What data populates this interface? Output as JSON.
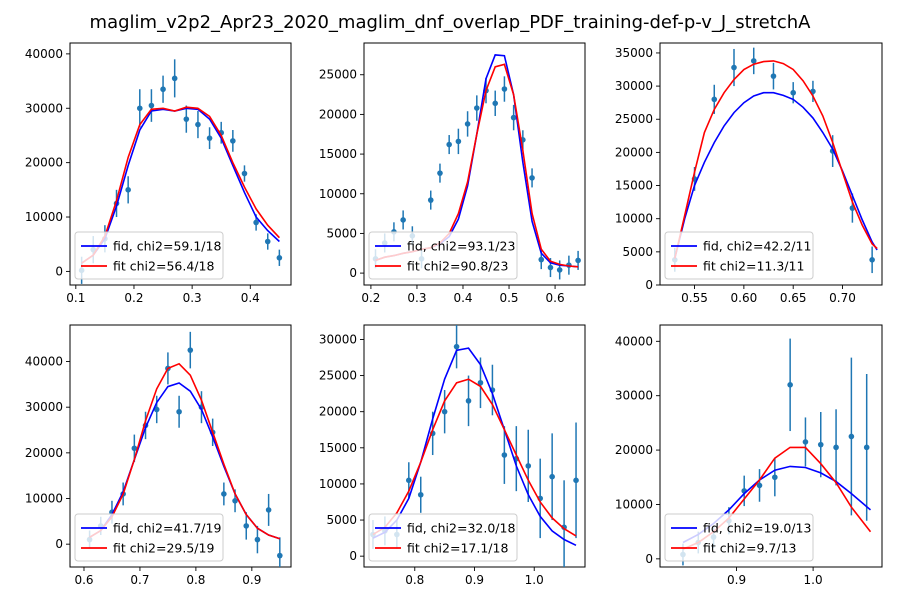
{
  "title": "maglim_v2p2_Apr23_2020_maglim_dnf_overlap_PDF_training-def-p-v_J_stretchA",
  "colors": {
    "fid": "#0000ff",
    "fit": "#ff0000",
    "points": "#1f77b4"
  },
  "chart_data": [
    {
      "type": "line",
      "xlim": [
        0.09,
        0.47
      ],
      "ylim": [
        -2500,
        42000
      ],
      "xticks": [
        "0.1",
        "0.2",
        "0.3",
        "0.4"
      ],
      "xtick_values": [
        0.1,
        0.2,
        0.3,
        0.4
      ],
      "yticks": [
        "0",
        "10000",
        "20000",
        "30000",
        "40000"
      ],
      "ytick_values": [
        0,
        10000,
        20000,
        30000,
        40000
      ],
      "legend": [
        "fid, chi2=59.1/18",
        "fit chi2=56.4/18"
      ],
      "legend_position": "lower-left",
      "points": {
        "x": [
          0.11,
          0.13,
          0.15,
          0.17,
          0.19,
          0.21,
          0.23,
          0.25,
          0.27,
          0.29,
          0.31,
          0.33,
          0.35,
          0.37,
          0.39,
          0.41,
          0.43,
          0.45
        ],
        "y": [
          200,
          4000,
          6000,
          12500,
          15000,
          30000,
          30500,
          33500,
          35500,
          28000,
          27000,
          24500,
          25500,
          24000,
          18000,
          9000,
          5500,
          2500
        ],
        "err": [
          2500,
          2500,
          2500,
          2500,
          2500,
          3500,
          3000,
          2500,
          3500,
          2500,
          2500,
          2000,
          2000,
          2000,
          1500,
          1500,
          1500,
          1500
        ]
      },
      "series": [
        {
          "label": "fid",
          "x": [
            0.11,
            0.13,
            0.15,
            0.17,
            0.19,
            0.21,
            0.23,
            0.25,
            0.27,
            0.29,
            0.31,
            0.33,
            0.35,
            0.37,
            0.39,
            0.41,
            0.43,
            0.45
          ],
          "y": [
            1500,
            3000,
            6000,
            12000,
            19500,
            26000,
            29500,
            29800,
            29500,
            30000,
            29800,
            28000,
            24500,
            19500,
            14500,
            10000,
            7500,
            5500
          ]
        },
        {
          "label": "fit",
          "x": [
            0.11,
            0.13,
            0.15,
            0.17,
            0.19,
            0.21,
            0.23,
            0.25,
            0.27,
            0.29,
            0.31,
            0.33,
            0.35,
            0.37,
            0.39,
            0.41,
            0.43,
            0.45
          ],
          "y": [
            1500,
            3000,
            6500,
            13000,
            21000,
            27000,
            29800,
            30000,
            29500,
            30200,
            30000,
            28500,
            25000,
            20000,
            15500,
            11500,
            8500,
            6200
          ]
        }
      ]
    },
    {
      "type": "line",
      "xlim": [
        0.185,
        0.665
      ],
      "ylim": [
        -1500,
        29000
      ],
      "xticks": [
        "0.2",
        "0.3",
        "0.4",
        "0.5",
        "0.6"
      ],
      "xtick_values": [
        0.2,
        0.3,
        0.4,
        0.5,
        0.6
      ],
      "yticks": [
        "0",
        "5000",
        "10000",
        "15000",
        "20000",
        "25000"
      ],
      "ytick_values": [
        0,
        5000,
        10000,
        15000,
        20000,
        25000
      ],
      "legend": [
        "fid, chi2=93.1/23",
        "fit chi2=90.8/23"
      ],
      "legend_position": "lower-left",
      "points": {
        "x": [
          0.21,
          0.23,
          0.25,
          0.27,
          0.29,
          0.31,
          0.33,
          0.35,
          0.37,
          0.39,
          0.41,
          0.43,
          0.45,
          0.47,
          0.49,
          0.51,
          0.53,
          0.55,
          0.57,
          0.59,
          0.61,
          0.63,
          0.65
        ],
        "y": [
          1800,
          3800,
          5200,
          6700,
          4700,
          1800,
          9200,
          12600,
          16200,
          16600,
          18800,
          20800,
          23000,
          21400,
          23200,
          19600,
          16800,
          12000,
          1700,
          700,
          400,
          1000,
          1600
        ],
        "err": [
          1200,
          1200,
          1200,
          1200,
          1200,
          1200,
          1200,
          1200,
          1200,
          1600,
          1600,
          1600,
          1600,
          1600,
          1600,
          1600,
          1200,
          1200,
          1200,
          1200,
          1200,
          1200,
          1200
        ]
      },
      "series": [
        {
          "label": "fid",
          "x": [
            0.21,
            0.23,
            0.25,
            0.27,
            0.29,
            0.31,
            0.33,
            0.35,
            0.37,
            0.39,
            0.41,
            0.43,
            0.45,
            0.47,
            0.49,
            0.51,
            0.53,
            0.55,
            0.57,
            0.59,
            0.61,
            0.63,
            0.65
          ],
          "y": [
            1600,
            2000,
            2200,
            2500,
            2700,
            3000,
            3200,
            3700,
            4600,
            6800,
            11000,
            17500,
            24500,
            27500,
            27400,
            22500,
            14000,
            6500,
            2500,
            1300,
            1000,
            900,
            800
          ]
        },
        {
          "label": "fit",
          "x": [
            0.21,
            0.23,
            0.25,
            0.27,
            0.29,
            0.31,
            0.33,
            0.35,
            0.37,
            0.39,
            0.41,
            0.43,
            0.45,
            0.47,
            0.49,
            0.51,
            0.53,
            0.55,
            0.57,
            0.59,
            0.61,
            0.63,
            0.65
          ],
          "y": [
            1600,
            2000,
            2200,
            2500,
            2700,
            3000,
            3200,
            3800,
            5000,
            7500,
            11500,
            17500,
            23000,
            26000,
            26300,
            22500,
            15500,
            7500,
            3000,
            1500,
            1100,
            900,
            800
          ]
        }
      ]
    },
    {
      "type": "line",
      "xlim": [
        0.515,
        0.74
      ],
      "ylim": [
        0,
        36500
      ],
      "xticks": [
        "0.55",
        "0.60",
        "0.65",
        "0.70"
      ],
      "xtick_values": [
        0.55,
        0.6,
        0.65,
        0.7
      ],
      "yticks": [
        "0",
        "5000",
        "10000",
        "15000",
        "20000",
        "25000",
        "30000",
        "35000"
      ],
      "ytick_values": [
        0,
        5000,
        10000,
        15000,
        20000,
        25000,
        30000,
        35000
      ],
      "legend": [
        "fid, chi2=42.2/11",
        "fit chi2=11.3/11"
      ],
      "legend_position": "lower-left",
      "points": {
        "x": [
          0.53,
          0.55,
          0.57,
          0.59,
          0.61,
          0.63,
          0.65,
          0.67,
          0.69,
          0.71,
          0.73
        ],
        "y": [
          3800,
          16000,
          28000,
          32800,
          33800,
          31500,
          29000,
          29200,
          20200,
          11600,
          3800
        ],
        "err": [
          1800,
          1800,
          2200,
          2800,
          2000,
          2000,
          1600,
          1600,
          2400,
          2200,
          2000
        ]
      },
      "series": [
        {
          "label": "fid",
          "x": [
            0.53,
            0.54,
            0.55,
            0.56,
            0.57,
            0.58,
            0.59,
            0.6,
            0.61,
            0.62,
            0.63,
            0.64,
            0.65,
            0.66,
            0.67,
            0.68,
            0.69,
            0.7,
            0.71,
            0.72,
            0.73,
            0.735
          ],
          "y": [
            4000,
            10000,
            15000,
            18500,
            21500,
            24000,
            26000,
            27500,
            28500,
            29000,
            29000,
            28600,
            28000,
            26800,
            25200,
            23000,
            20500,
            17200,
            13500,
            9800,
            6500,
            5300
          ]
        },
        {
          "label": "fit",
          "x": [
            0.53,
            0.54,
            0.55,
            0.56,
            0.57,
            0.58,
            0.59,
            0.6,
            0.61,
            0.62,
            0.63,
            0.64,
            0.65,
            0.66,
            0.67,
            0.68,
            0.69,
            0.7,
            0.71,
            0.72,
            0.73,
            0.735
          ],
          "y": [
            4000,
            10500,
            17000,
            23000,
            26500,
            29000,
            31000,
            32500,
            33300,
            33700,
            33800,
            33400,
            32500,
            30800,
            28500,
            25500,
            21500,
            17000,
            12500,
            9000,
            6200,
            5500
          ]
        }
      ]
    },
    {
      "type": "line",
      "xlim": [
        0.575,
        0.97
      ],
      "ylim": [
        -5000,
        48000
      ],
      "xticks": [
        "0.6",
        "0.7",
        "0.8",
        "0.9"
      ],
      "xtick_values": [
        0.6,
        0.7,
        0.8,
        0.9
      ],
      "yticks": [
        "0",
        "10000",
        "20000",
        "30000",
        "40000"
      ],
      "ytick_values": [
        0,
        10000,
        20000,
        30000,
        40000
      ],
      "legend": [
        "fid, chi2=41.7/19",
        "fit chi2=29.5/19"
      ],
      "legend_position": "lower-left",
      "points": {
        "x": [
          0.61,
          0.63,
          0.65,
          0.67,
          0.69,
          0.71,
          0.73,
          0.75,
          0.77,
          0.79,
          0.81,
          0.83,
          0.85,
          0.87,
          0.89,
          0.91,
          0.93,
          0.95
        ],
        "y": [
          1000,
          4000,
          7000,
          11000,
          21000,
          26000,
          29500,
          38500,
          29000,
          42500,
          30000,
          24500,
          11000,
          9500,
          4000,
          1000,
          7500,
          -2500
        ],
        "err": [
          2000,
          2000,
          2500,
          2500,
          3000,
          3000,
          3000,
          3500,
          3500,
          4000,
          3500,
          3000,
          2500,
          2500,
          3000,
          3000,
          3500,
          4000
        ]
      },
      "series": [
        {
          "label": "fid",
          "x": [
            0.61,
            0.63,
            0.65,
            0.67,
            0.69,
            0.71,
            0.73,
            0.75,
            0.77,
            0.79,
            0.81,
            0.83,
            0.85,
            0.87,
            0.89,
            0.91,
            0.93,
            0.95
          ],
          "y": [
            1500,
            3000,
            6500,
            11500,
            18500,
            25500,
            31000,
            34500,
            35300,
            33500,
            29500,
            23500,
            17000,
            11000,
            6500,
            3500,
            2000,
            1200
          ]
        },
        {
          "label": "fit",
          "x": [
            0.61,
            0.63,
            0.65,
            0.67,
            0.69,
            0.71,
            0.73,
            0.75,
            0.77,
            0.79,
            0.81,
            0.83,
            0.85,
            0.87,
            0.89,
            0.91,
            0.93,
            0.95
          ],
          "y": [
            1500,
            3000,
            6000,
            11000,
            18500,
            27000,
            34000,
            38500,
            39500,
            37000,
            31500,
            24500,
            17500,
            11000,
            6500,
            3500,
            2000,
            1200
          ]
        }
      ]
    },
    {
      "type": "line",
      "xlim": [
        0.715,
        1.085
      ],
      "ylim": [
        -1500,
        32000
      ],
      "xticks": [
        "0.8",
        "0.9",
        "1.0"
      ],
      "xtick_values": [
        0.8,
        0.9,
        1.0
      ],
      "yticks": [
        "0",
        "5000",
        "10000",
        "15000",
        "20000",
        "25000",
        "30000"
      ],
      "ytick_values": [
        0,
        5000,
        10000,
        15000,
        20000,
        25000,
        30000
      ],
      "legend": [
        "fid, chi2=32.0/18",
        "fit chi2=17.1/18"
      ],
      "legend_position": "lower-left",
      "points": {
        "x": [
          0.73,
          0.75,
          0.77,
          0.79,
          0.81,
          0.83,
          0.85,
          0.87,
          0.89,
          0.91,
          0.93,
          0.95,
          0.97,
          0.99,
          1.01,
          1.03,
          1.05,
          1.07
        ],
        "y": [
          3000,
          3500,
          3000,
          10500,
          8500,
          17000,
          20000,
          29000,
          21500,
          24000,
          23000,
          14000,
          13500,
          12500,
          8000,
          11000,
          4000,
          10500
        ],
        "err": [
          2000,
          2000,
          2000,
          2500,
          2500,
          3000,
          3000,
          3000,
          3500,
          3500,
          3500,
          4000,
          4500,
          5000,
          5500,
          6000,
          6500,
          8000
        ]
      },
      "series": [
        {
          "label": "fid",
          "x": [
            0.73,
            0.75,
            0.77,
            0.79,
            0.81,
            0.83,
            0.85,
            0.87,
            0.89,
            0.91,
            0.93,
            0.95,
            0.97,
            0.99,
            1.01,
            1.03,
            1.05,
            1.07
          ],
          "y": [
            2500,
            3300,
            5000,
            8000,
            13000,
            19000,
            24500,
            28500,
            28800,
            26500,
            22500,
            17500,
            12500,
            8500,
            5500,
            3500,
            2300,
            1500
          ]
        },
        {
          "label": "fit",
          "x": [
            0.73,
            0.75,
            0.77,
            0.79,
            0.81,
            0.83,
            0.85,
            0.87,
            0.89,
            0.91,
            0.93,
            0.95,
            0.97,
            0.99,
            1.01,
            1.03,
            1.05,
            1.07
          ],
          "y": [
            3000,
            4000,
            6000,
            9000,
            13000,
            17500,
            21500,
            24000,
            24500,
            23500,
            21000,
            17500,
            14000,
            10500,
            7500,
            5300,
            3800,
            2800
          ]
        }
      ]
    },
    {
      "type": "line",
      "xlim": [
        0.8,
        1.09
      ],
      "ylim": [
        -1500,
        43000
      ],
      "xticks": [
        "0.9",
        "1.0"
      ],
      "xtick_values": [
        0.9,
        1.0
      ],
      "yticks": [
        "0",
        "10000",
        "20000",
        "30000",
        "40000"
      ],
      "ytick_values": [
        0,
        10000,
        20000,
        30000,
        40000
      ],
      "legend": [
        "fid, chi2=19.0/13",
        "fit chi2=9.7/13"
      ],
      "legend_position": "lower-left",
      "points": {
        "x": [
          0.83,
          0.85,
          0.87,
          0.89,
          0.91,
          0.93,
          0.95,
          0.97,
          0.99,
          1.01,
          1.03,
          1.05,
          1.07
        ],
        "y": [
          800,
          3000,
          4000,
          7000,
          12500,
          13500,
          15000,
          32000,
          21500,
          21000,
          20500,
          22500,
          20500
        ],
        "err": [
          2000,
          2000,
          2000,
          2500,
          2800,
          3000,
          3500,
          8500,
          4500,
          6000,
          7000,
          14500,
          13500
        ]
      },
      "series": [
        {
          "label": "fid",
          "x": [
            0.83,
            0.85,
            0.87,
            0.89,
            0.91,
            0.93,
            0.95,
            0.97,
            0.99,
            1.01,
            1.03,
            1.05,
            1.075
          ],
          "y": [
            3000,
            4500,
            6500,
            9000,
            12000,
            14500,
            16300,
            17000,
            16800,
            15800,
            14200,
            12000,
            9000
          ]
        },
        {
          "label": "fit",
          "x": [
            0.83,
            0.85,
            0.87,
            0.89,
            0.91,
            0.93,
            0.95,
            0.97,
            0.99,
            1.01,
            1.03,
            1.05,
            1.075
          ],
          "y": [
            1800,
            3000,
            5000,
            7500,
            11000,
            14500,
            18500,
            20500,
            20500,
            17500,
            14000,
            9500,
            5000
          ]
        }
      ]
    }
  ]
}
